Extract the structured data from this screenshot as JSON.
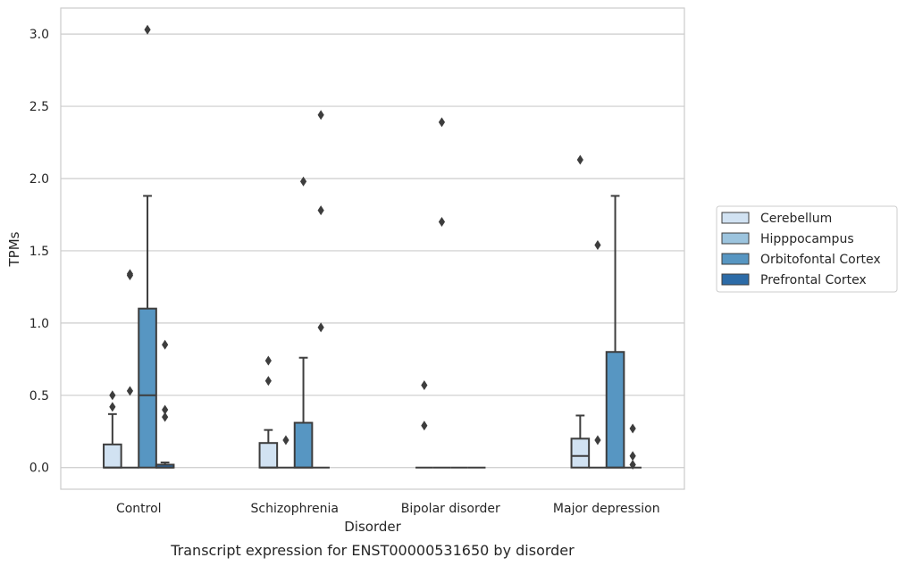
{
  "caption": "Transcript expression for ENST00000531650 by disorder",
  "chart_data": {
    "type": "box",
    "xlabel": "Disorder",
    "ylabel": "TPMs",
    "ylim": [
      -0.15,
      3.18
    ],
    "y_ticks": [
      0.0,
      0.5,
      1.0,
      1.5,
      2.0,
      2.5,
      3.0
    ],
    "y_tick_labels": [
      "0.0",
      "0.5",
      "1.0",
      "1.5",
      "2.0",
      "2.5",
      "3.0"
    ],
    "grid": "horizontal",
    "legend_position": "right",
    "categories": [
      "Control",
      "Schizophrenia",
      "Bipolar disorder",
      "Major depression"
    ],
    "series": [
      {
        "name": "Cerebellum",
        "color": "#d1e2f2",
        "boxes": [
          {
            "q1": 0.0,
            "median": 0.0,
            "q3": 0.16,
            "whisker_low": 0.0,
            "whisker_high": 0.37,
            "outliers": [
              0.42,
              0.5
            ]
          },
          {
            "q1": 0.0,
            "median": 0.0,
            "q3": 0.17,
            "whisker_low": 0.0,
            "whisker_high": 0.26,
            "outliers": [
              0.6,
              0.74
            ]
          },
          {
            "q1": 0.0,
            "median": 0.0,
            "q3": 0.0,
            "whisker_low": 0.0,
            "whisker_high": 0.0,
            "outliers": [
              0.29,
              0.57
            ]
          },
          {
            "q1": 0.0,
            "median": 0.08,
            "q3": 0.2,
            "whisker_low": 0.0,
            "whisker_high": 0.36,
            "outliers": [
              2.13
            ]
          }
        ]
      },
      {
        "name": "Hipppocampus",
        "color": "#9cc4de",
        "boxes": [
          {
            "q1": 0.0,
            "median": 0.0,
            "q3": 0.0,
            "whisker_low": 0.0,
            "whisker_high": 0.0,
            "outliers": [
              0.53,
              1.33,
              1.34
            ]
          },
          {
            "q1": 0.0,
            "median": 0.0,
            "q3": 0.0,
            "whisker_low": 0.0,
            "whisker_high": 0.0,
            "outliers": [
              0.19
            ]
          },
          {
            "q1": 0.0,
            "median": 0.0,
            "q3": 0.0,
            "whisker_low": 0.0,
            "whisker_high": 0.0,
            "outliers": [
              1.7,
              2.39
            ]
          },
          {
            "q1": 0.0,
            "median": 0.0,
            "q3": 0.0,
            "whisker_low": 0.0,
            "whisker_high": 0.0,
            "outliers": [
              0.19,
              1.54
            ]
          }
        ]
      },
      {
        "name": "Orbitofontal Cortex",
        "color": "#5796c2",
        "boxes": [
          {
            "q1": 0.0,
            "median": 0.5,
            "q3": 1.1,
            "whisker_low": 0.0,
            "whisker_high": 1.88,
            "outliers": [
              3.03
            ]
          },
          {
            "q1": 0.0,
            "median": 0.0,
            "q3": 0.31,
            "whisker_low": 0.0,
            "whisker_high": 0.76,
            "outliers": [
              1.98
            ]
          },
          {
            "q1": 0.0,
            "median": 0.0,
            "q3": 0.0,
            "whisker_low": 0.0,
            "whisker_high": 0.0,
            "outliers": []
          },
          {
            "q1": 0.0,
            "median": 0.0,
            "q3": 0.8,
            "whisker_low": 0.0,
            "whisker_high": 1.88,
            "outliers": []
          }
        ]
      },
      {
        "name": "Prefrontal Cortex",
        "color": "#2c6ba7",
        "boxes": [
          {
            "q1": 0.0,
            "median": 0.0,
            "q3": 0.02,
            "whisker_low": 0.0,
            "whisker_high": 0.035,
            "outliers": [
              0.35,
              0.4,
              0.85
            ]
          },
          {
            "q1": 0.0,
            "median": 0.0,
            "q3": 0.0,
            "whisker_low": 0.0,
            "whisker_high": 0.0,
            "outliers": [
              0.97,
              1.78,
              2.44
            ]
          },
          {
            "q1": 0.0,
            "median": 0.0,
            "q3": 0.0,
            "whisker_low": 0.0,
            "whisker_high": 0.0,
            "outliers": []
          },
          {
            "q1": 0.0,
            "median": 0.0,
            "q3": 0.0,
            "whisker_low": 0.0,
            "whisker_high": 0.0,
            "outliers": [
              0.02,
              0.08,
              0.27
            ]
          }
        ]
      }
    ]
  }
}
